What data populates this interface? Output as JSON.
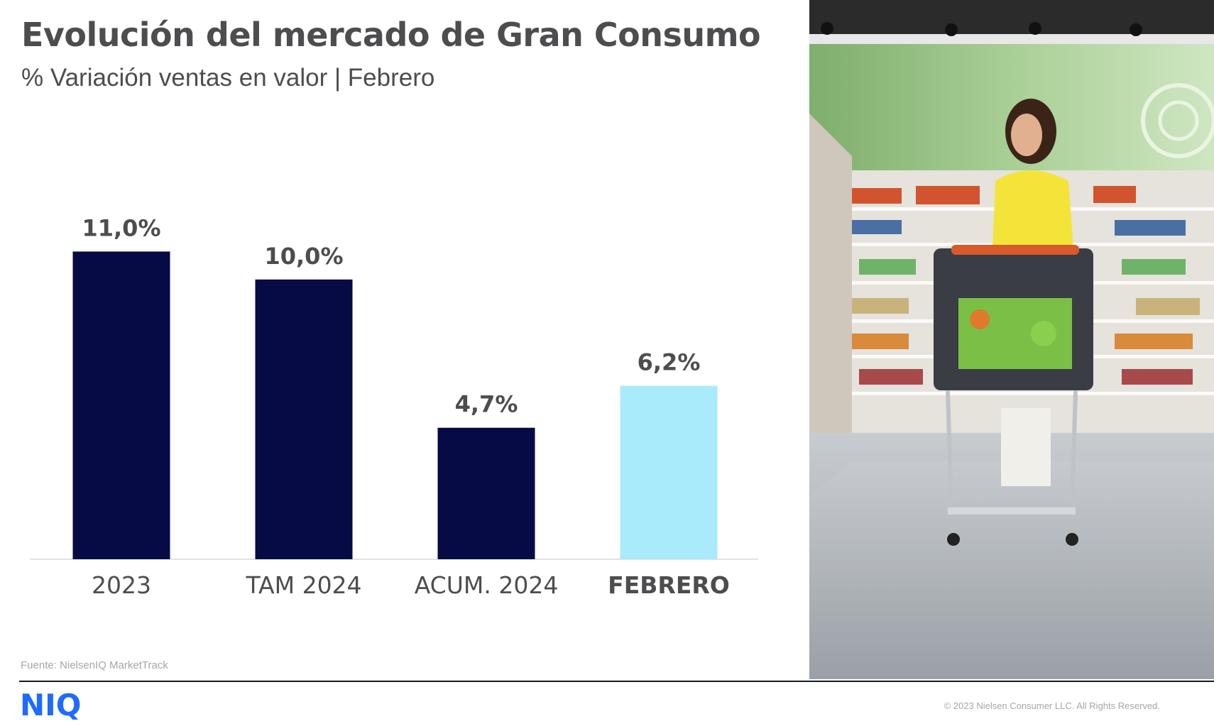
{
  "header": {
    "title": "Evolución del mercado de Gran Consumo",
    "subtitle": "% Variación ventas en valor | Febrero"
  },
  "chart_data": {
    "type": "bar",
    "categories": [
      "2023",
      "TAM 2024",
      "ACUM. 2024",
      "FEBRERO"
    ],
    "values": [
      11.0,
      10.0,
      4.7,
      6.2
    ],
    "value_labels": [
      "11,0%",
      "10,0%",
      "4,7%",
      "6,2%"
    ],
    "ylim": [
      0,
      12
    ],
    "grid": false,
    "colors": [
      "#060b45",
      "#060b45",
      "#060b45",
      "#a9ebfb"
    ],
    "highlight_category": "FEBRERO"
  },
  "footer": {
    "source": "Fuente: NielsenIQ MarketTrack",
    "copyright": "© 2023 Nielsen Consumer LLC. All Rights Reserved.",
    "logo_text": "NIQ",
    "logo_color": "#1f6bff"
  },
  "photo": {
    "icon": "supermarket-shopper-photo"
  }
}
